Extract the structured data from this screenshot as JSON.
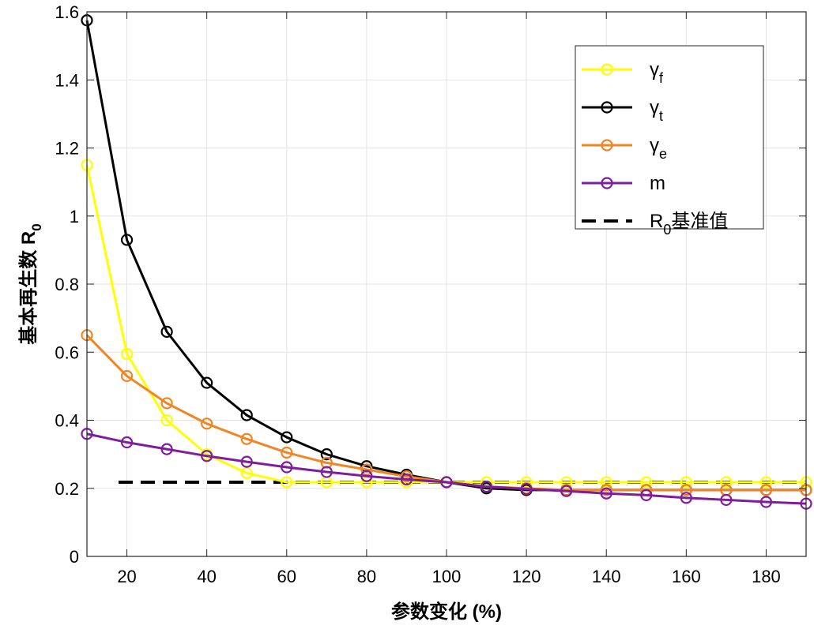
{
  "chart_data": {
    "type": "line",
    "title": "",
    "xlabel": "参数变化 (%)",
    "ylabel": "基本再生数 R0",
    "ylabel_main": "基本再生数 ",
    "ylabel_symbol": "R",
    "ylabel_subscript": "0",
    "xlim": [
      10,
      190
    ],
    "ylim": [
      0,
      1.6
    ],
    "xticks": [
      20,
      40,
      60,
      80,
      100,
      120,
      140,
      160,
      180
    ],
    "xtick_labels": [
      "20",
      "40",
      "60",
      "80",
      "100",
      "120",
      "140",
      "160",
      "180"
    ],
    "yticks": [
      0,
      0.2,
      0.4,
      0.6,
      0.8,
      1,
      1.2,
      1.4,
      1.6
    ],
    "ytick_labels": [
      "0",
      "0.2",
      "0.4",
      "0.6",
      "0.8",
      "1",
      "1.2",
      "1.4",
      "1.6"
    ],
    "grid": true,
    "legend_position": "top-right",
    "x": [
      10,
      20,
      30,
      40,
      50,
      60,
      70,
      80,
      90,
      100,
      110,
      120,
      130,
      140,
      150,
      160,
      170,
      180,
      190
    ],
    "series": [
      {
        "name": "γf",
        "symbol": "γ",
        "subscript": "f",
        "color": "#ffff00",
        "values": [
          1.15,
          0.595,
          0.4,
          0.3,
          0.245,
          0.218,
          0.218,
          0.218,
          0.218,
          0.218,
          0.218,
          0.218,
          0.218,
          0.218,
          0.218,
          0.218,
          0.218,
          0.218,
          0.218
        ]
      },
      {
        "name": "γt",
        "symbol": "γ",
        "subscript": "t",
        "color": "#000000",
        "values": [
          1.575,
          0.93,
          0.66,
          0.51,
          0.415,
          0.35,
          0.3,
          0.265,
          0.24,
          0.218,
          0.2,
          0.195,
          0.195,
          0.195,
          0.195,
          0.195,
          0.195,
          0.195,
          0.195
        ]
      },
      {
        "name": "γe",
        "symbol": "γ",
        "subscript": "e",
        "color": "#f28522",
        "values": [
          0.65,
          0.53,
          0.45,
          0.39,
          0.345,
          0.305,
          0.275,
          0.255,
          0.235,
          0.218,
          0.205,
          0.2,
          0.195,
          0.195,
          0.195,
          0.195,
          0.195,
          0.195,
          0.195
        ]
      },
      {
        "name": "m",
        "symbol": "m",
        "subscript": "",
        "color": "#7e1e9c",
        "values": [
          0.36,
          0.335,
          0.315,
          0.295,
          0.278,
          0.262,
          0.248,
          0.236,
          0.226,
          0.218,
          0.205,
          0.198,
          0.192,
          0.185,
          0.18,
          0.172,
          0.166,
          0.16,
          0.155
        ]
      }
    ],
    "reference_line": {
      "name": "R0基准值",
      "symbol": "R",
      "subscript": "0",
      "suffix": "基准值",
      "value": 0.218,
      "color": "#000000",
      "style": "dashed"
    }
  }
}
